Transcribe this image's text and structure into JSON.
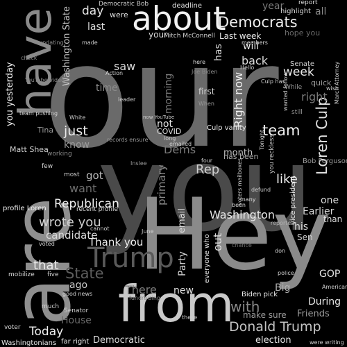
{
  "words": [
    {
      "text": "our",
      "color": "#6a6a6a"
    },
    {
      "text": "you",
      "color": "#4a4a4a"
    },
    {
      "text": "Hey",
      "color": "#8a8a8a"
    },
    {
      "text": "are",
      "color": "#8f8f8f"
    },
    {
      "text": "have",
      "color": "#8a8a8a"
    },
    {
      "text": "from",
      "color": "#c9c9c9"
    },
    {
      "text": "about",
      "color": "#f2f2f2"
    },
    {
      "text": "Trump",
      "color": "#5a5a5a"
    },
    {
      "text": "Democrats",
      "color": "#ededed"
    },
    {
      "text": "Loren Culp",
      "color": "#e0e0e0"
    },
    {
      "text": "Donald Trump",
      "color": "#c4c4c4"
    },
    {
      "text": "Washington",
      "color": "#e6e6e6"
    },
    {
      "text": "wrote you",
      "color": "#d0d0d0"
    },
    {
      "text": "Republican",
      "color": "#f0f0f0"
    },
    {
      "text": "candidate",
      "color": "#d9d9d9"
    },
    {
      "text": "Thank you",
      "color": "#eeeeee"
    },
    {
      "text": "State",
      "color": "#5e5e5e"
    },
    {
      "text": "There",
      "color": "#7a7a7a"
    },
    {
      "text": "Today",
      "color": "#f0f0f0"
    },
    {
      "text": "House",
      "color": "#6a6a6a"
    },
    {
      "text": "team",
      "color": "#f2f2f2"
    },
    {
      "text": "week",
      "color": "#e9e9e9"
    },
    {
      "text": "just",
      "color": "#eaeaea"
    },
    {
      "text": "like",
      "color": "#f0f0f0"
    },
    {
      "text": "Rep",
      "color": "#cfcfcf"
    },
    {
      "text": "that",
      "color": "#e8e8e8"
    },
    {
      "text": "with",
      "color": "#8a8a8a"
    },
    {
      "text": "During",
      "color": "#e6e6e6"
    },
    {
      "text": "Friends",
      "color": "#9a9a9a"
    },
    {
      "text": "election",
      "color": "#e6e6e6"
    },
    {
      "text": "Democratic",
      "color": "#dddddd"
    },
    {
      "text": "GOP",
      "color": "#e6e6e6"
    },
    {
      "text": "Earlier",
      "color": "#d8d8d8"
    },
    {
      "text": "one",
      "color": "#dadada"
    },
    {
      "text": "than",
      "color": "#dddddd"
    },
    {
      "text": "his",
      "color": "#d8d8d8"
    },
    {
      "text": "Sen",
      "color": "#d0d0d0"
    },
    {
      "text": "new",
      "color": "#e0e0e0"
    },
    {
      "text": "know",
      "color": "#9a9a9a"
    },
    {
      "text": "got",
      "color": "#bdbdbd"
    },
    {
      "text": "want",
      "color": "#6c6c6c"
    },
    {
      "text": "saw",
      "color": "#dadada"
    },
    {
      "text": "day",
      "color": "#e6e6e6"
    },
    {
      "text": "last",
      "color": "#dedede"
    },
    {
      "text": "back",
      "color": "#dcdcdc"
    },
    {
      "text": "Right now",
      "color": "#f0f0f0"
    },
    {
      "text": "month",
      "color": "#c6c6c6"
    },
    {
      "text": "has been",
      "color": "#aaaaaa"
    },
    {
      "text": "primary",
      "color": "#888888"
    },
    {
      "text": "email",
      "color": "#e0e0e0"
    },
    {
      "text": "Party",
      "color": "#d6d6d6"
    },
    {
      "text": "ago",
      "color": "#cccccc"
    },
    {
      "text": "Big",
      "color": "#b0b0b0"
    },
    {
      "text": "make sure",
      "color": "#9a9a9a"
    },
    {
      "text": "Dems",
      "color": "#7a7a7a"
    },
    {
      "text": "not",
      "color": "#e6e6e6"
    },
    {
      "text": "morning",
      "color": "#7a7a7a"
    },
    {
      "text": "Washington State",
      "color": "#c8c8c8"
    },
    {
      "text": "you yesterday",
      "color": "#f0f0f0"
    },
    {
      "text": "will",
      "color": "#e6e6e6"
    },
    {
      "text": "your",
      "color": "#d8d8d8"
    },
    {
      "text": "were",
      "color": "#dcdcdc"
    },
    {
      "text": "year",
      "color": "#7a7a7a"
    },
    {
      "text": "all",
      "color": "#8a8a8a"
    },
    {
      "text": "right",
      "color": "#7a7a7a"
    },
    {
      "text": "has",
      "color": "#d8d8d8"
    },
    {
      "text": "first",
      "color": "#d6d6d6"
    },
    {
      "text": "Last week",
      "color": "#e6e6e6"
    },
    {
      "text": "Culp vanity",
      "color": "#eaeaea"
    },
    {
      "text": "deadline",
      "color": "#e0e0e0"
    },
    {
      "text": "Democratic Bob",
      "color": "#d0d0d0"
    },
    {
      "text": "Mitch McConnell",
      "color": "#d6d6d6"
    },
    {
      "text": "highlight",
      "color": "#dddddd"
    },
    {
      "text": "hope you",
      "color": "#6a6a6a"
    },
    {
      "text": "report",
      "color": "#dddddd"
    },
    {
      "text": "members",
      "color": "#dcdcdc"
    },
    {
      "text": "Senate",
      "color": "#d0d0d0"
    },
    {
      "text": "quick",
      "color": "#9a9a9a"
    },
    {
      "text": "wish",
      "color": "#d0d0d0"
    },
    {
      "text": "March Attorney",
      "color": "#cfcfcf"
    },
    {
      "text": "While",
      "color": "#9a9a9a"
    },
    {
      "text": "wanted follow",
      "color": "#c8c8c8"
    },
    {
      "text": "still",
      "color": "#9a9a9a"
    },
    {
      "text": "Tonight",
      "color": "#d0d0d0"
    },
    {
      "text": "you reckless",
      "color": "#c8c8c8"
    },
    {
      "text": "Bob Ferguson",
      "color": "#9a9a9a"
    },
    {
      "text": "vice president",
      "color": "#f0f0f0"
    },
    {
      "text": "Matt Shea",
      "color": "#d0d0d0"
    },
    {
      "text": "team pushing",
      "color": "#d6d6d6"
    },
    {
      "text": "Tina",
      "color": "#9a9a9a"
    },
    {
      "text": "working",
      "color": "#8a8a8a"
    },
    {
      "text": "profile Loren",
      "color": "#f0f0f0"
    },
    {
      "text": "recent profile",
      "color": "#dcdcdc"
    },
    {
      "text": "few",
      "color": "#d6d6d6"
    },
    {
      "text": "most",
      "color": "#cfcfcf"
    },
    {
      "text": "voted",
      "color": "#d0d0d0"
    },
    {
      "text": "mobilize",
      "color": "#d6d6d6"
    },
    {
      "text": "five",
      "color": "#d0d0d0"
    },
    {
      "text": "good news",
      "color": "#d0d0d0"
    },
    {
      "text": "Senator",
      "color": "#cfcfcf"
    },
    {
      "text": "much",
      "color": "#d0d0d0"
    },
    {
      "text": "voter",
      "color": "#d6d6d6"
    },
    {
      "text": "Washingtonians",
      "color": "#eaeaea"
    },
    {
      "text": "far right",
      "color": "#e6e6e6"
    },
    {
      "text": "fundraising",
      "color": "#8a8a8a"
    },
    {
      "text": "everyone who",
      "color": "#e6e6e6"
    },
    {
      "text": "out",
      "color": "#dcdcdc"
    },
    {
      "text": "Biden pick",
      "color": "#eaeaea"
    },
    {
      "text": "reported",
      "color": "#b0b0b0"
    },
    {
      "text": "chance",
      "color": "#6a6a6a"
    },
    {
      "text": "police",
      "color": "#d0d0d0"
    },
    {
      "text": "don",
      "color": "#cfcfcf"
    },
    {
      "text": "American",
      "color": "#cfcfcf"
    },
    {
      "text": "were writing",
      "color": "#d0d0d0"
    },
    {
      "text": "these",
      "color": "#d0d0d0"
    },
    {
      "text": "June",
      "color": "#cfcfcf"
    },
    {
      "text": "defund",
      "color": "#cfcfcf"
    },
    {
      "text": "many",
      "color": "#dcdcdc"
    },
    {
      "text": "been",
      "color": "#d8d8d8"
    },
    {
      "text": "four",
      "color": "#d0d0d0"
    },
    {
      "text": "voters mailboxes",
      "color": "#cfcfcf"
    },
    {
      "text": "COVID",
      "color": "#dddddd"
    },
    {
      "text": "records ensure",
      "color": "#9a9a9a"
    },
    {
      "text": "emailed",
      "color": "#cfcfcf"
    },
    {
      "text": "long",
      "color": "#cfcfcf"
    },
    {
      "text": "Joe Biden",
      "color": "#8a8a8a"
    },
    {
      "text": "Culp has",
      "color": "#cfcfcf"
    },
    {
      "text": "Action",
      "color": "#d0d0d0"
    },
    {
      "text": "leader",
      "color": "#cfcfcf"
    },
    {
      "text": "updating",
      "color": "#8a8a8a"
    },
    {
      "text": "YouTube video",
      "color": "#8a8a8a"
    },
    {
      "text": "now YouTube",
      "color": "#cfcfcf"
    },
    {
      "text": "White",
      "color": "#cfcfcf"
    },
    {
      "text": "time",
      "color": "#8a8a8a"
    },
    {
      "text": "When",
      "color": "#9a9a9a"
    },
    {
      "text": "here",
      "color": "#dcdcdc"
    },
    {
      "text": "Hello",
      "color": "#d0d0d0"
    },
    {
      "text": "check",
      "color": "#8a8a8a"
    },
    {
      "text": "made",
      "color": "#cfcfcf"
    },
    {
      "text": "cannot",
      "color": "#cfcfcf"
    },
    {
      "text": "Inslee",
      "color": "#9a9a9a"
    }
  ]
}
